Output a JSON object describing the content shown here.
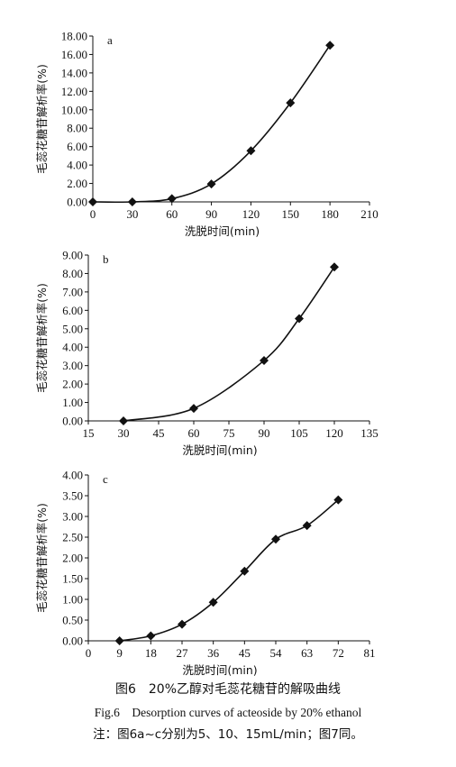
{
  "chart_data": [
    {
      "type": "line",
      "panel_label": "a",
      "xlabel": "洗脱时间(min)",
      "ylabel": "毛蕊花糖苷解析率(%)",
      "xlim": [
        0,
        210
      ],
      "ylim": [
        0,
        18
      ],
      "x_ticks": [
        "0",
        "30",
        "60",
        "90",
        "120",
        "150",
        "180",
        "210"
      ],
      "y_ticks": [
        "0.00",
        "2.00",
        "4.00",
        "6.00",
        "8.00",
        "10.00",
        "12.00",
        "14.00",
        "16.00",
        "18.00"
      ],
      "x": [
        0,
        30,
        60,
        90,
        120,
        150,
        180
      ],
      "values": [
        0.0,
        0.0,
        0.35,
        1.95,
        5.55,
        10.75,
        17.0
      ],
      "marker": "diamond",
      "grid": false
    },
    {
      "type": "line",
      "panel_label": "b",
      "xlabel": "洗脱时间(min)",
      "ylabel": "毛蕊花糖苷解析率(%)",
      "xlim": [
        15,
        135
      ],
      "ylim": [
        0,
        9
      ],
      "x_ticks": [
        "15",
        "30",
        "45",
        "60",
        "75",
        "90",
        "105",
        "120",
        "135"
      ],
      "y_ticks": [
        "0.00",
        "1.00",
        "2.00",
        "3.00",
        "4.00",
        "5.00",
        "6.00",
        "7.00",
        "8.00",
        "9.00"
      ],
      "x": [
        30,
        60,
        90,
        105,
        120
      ],
      "values": [
        0.0,
        0.68,
        3.28,
        5.55,
        8.35
      ],
      "marker": "diamond",
      "grid": false
    },
    {
      "type": "line",
      "panel_label": "c",
      "xlabel": "洗脱时间(min)",
      "ylabel": "毛蕊花糖苷解析率(%)",
      "xlim": [
        0,
        81
      ],
      "ylim": [
        0,
        4
      ],
      "x_ticks": [
        "0",
        "9",
        "18",
        "27",
        "36",
        "45",
        "54",
        "63",
        "72",
        "81"
      ],
      "y_ticks": [
        "0.00",
        "0.50",
        "1.00",
        "1.50",
        "2.00",
        "2.50",
        "3.00",
        "3.50",
        "4.00"
      ],
      "x": [
        9,
        18,
        27,
        36,
        45,
        54,
        63,
        72
      ],
      "values": [
        0.0,
        0.12,
        0.4,
        0.93,
        1.68,
        2.45,
        2.78,
        3.4
      ],
      "marker": "diamond",
      "grid": false
    }
  ],
  "figure_caption": {
    "chinese": "图6　20%乙醇对毛蕊花糖苷的解吸曲线",
    "english": "Fig.6　Desorption curves of acteoside by 20% ethanol",
    "note": "注：图6a~c分别为5、10、15mL/min；图7同。"
  },
  "colors": {
    "ink": "#111111",
    "background": "#ffffff"
  }
}
